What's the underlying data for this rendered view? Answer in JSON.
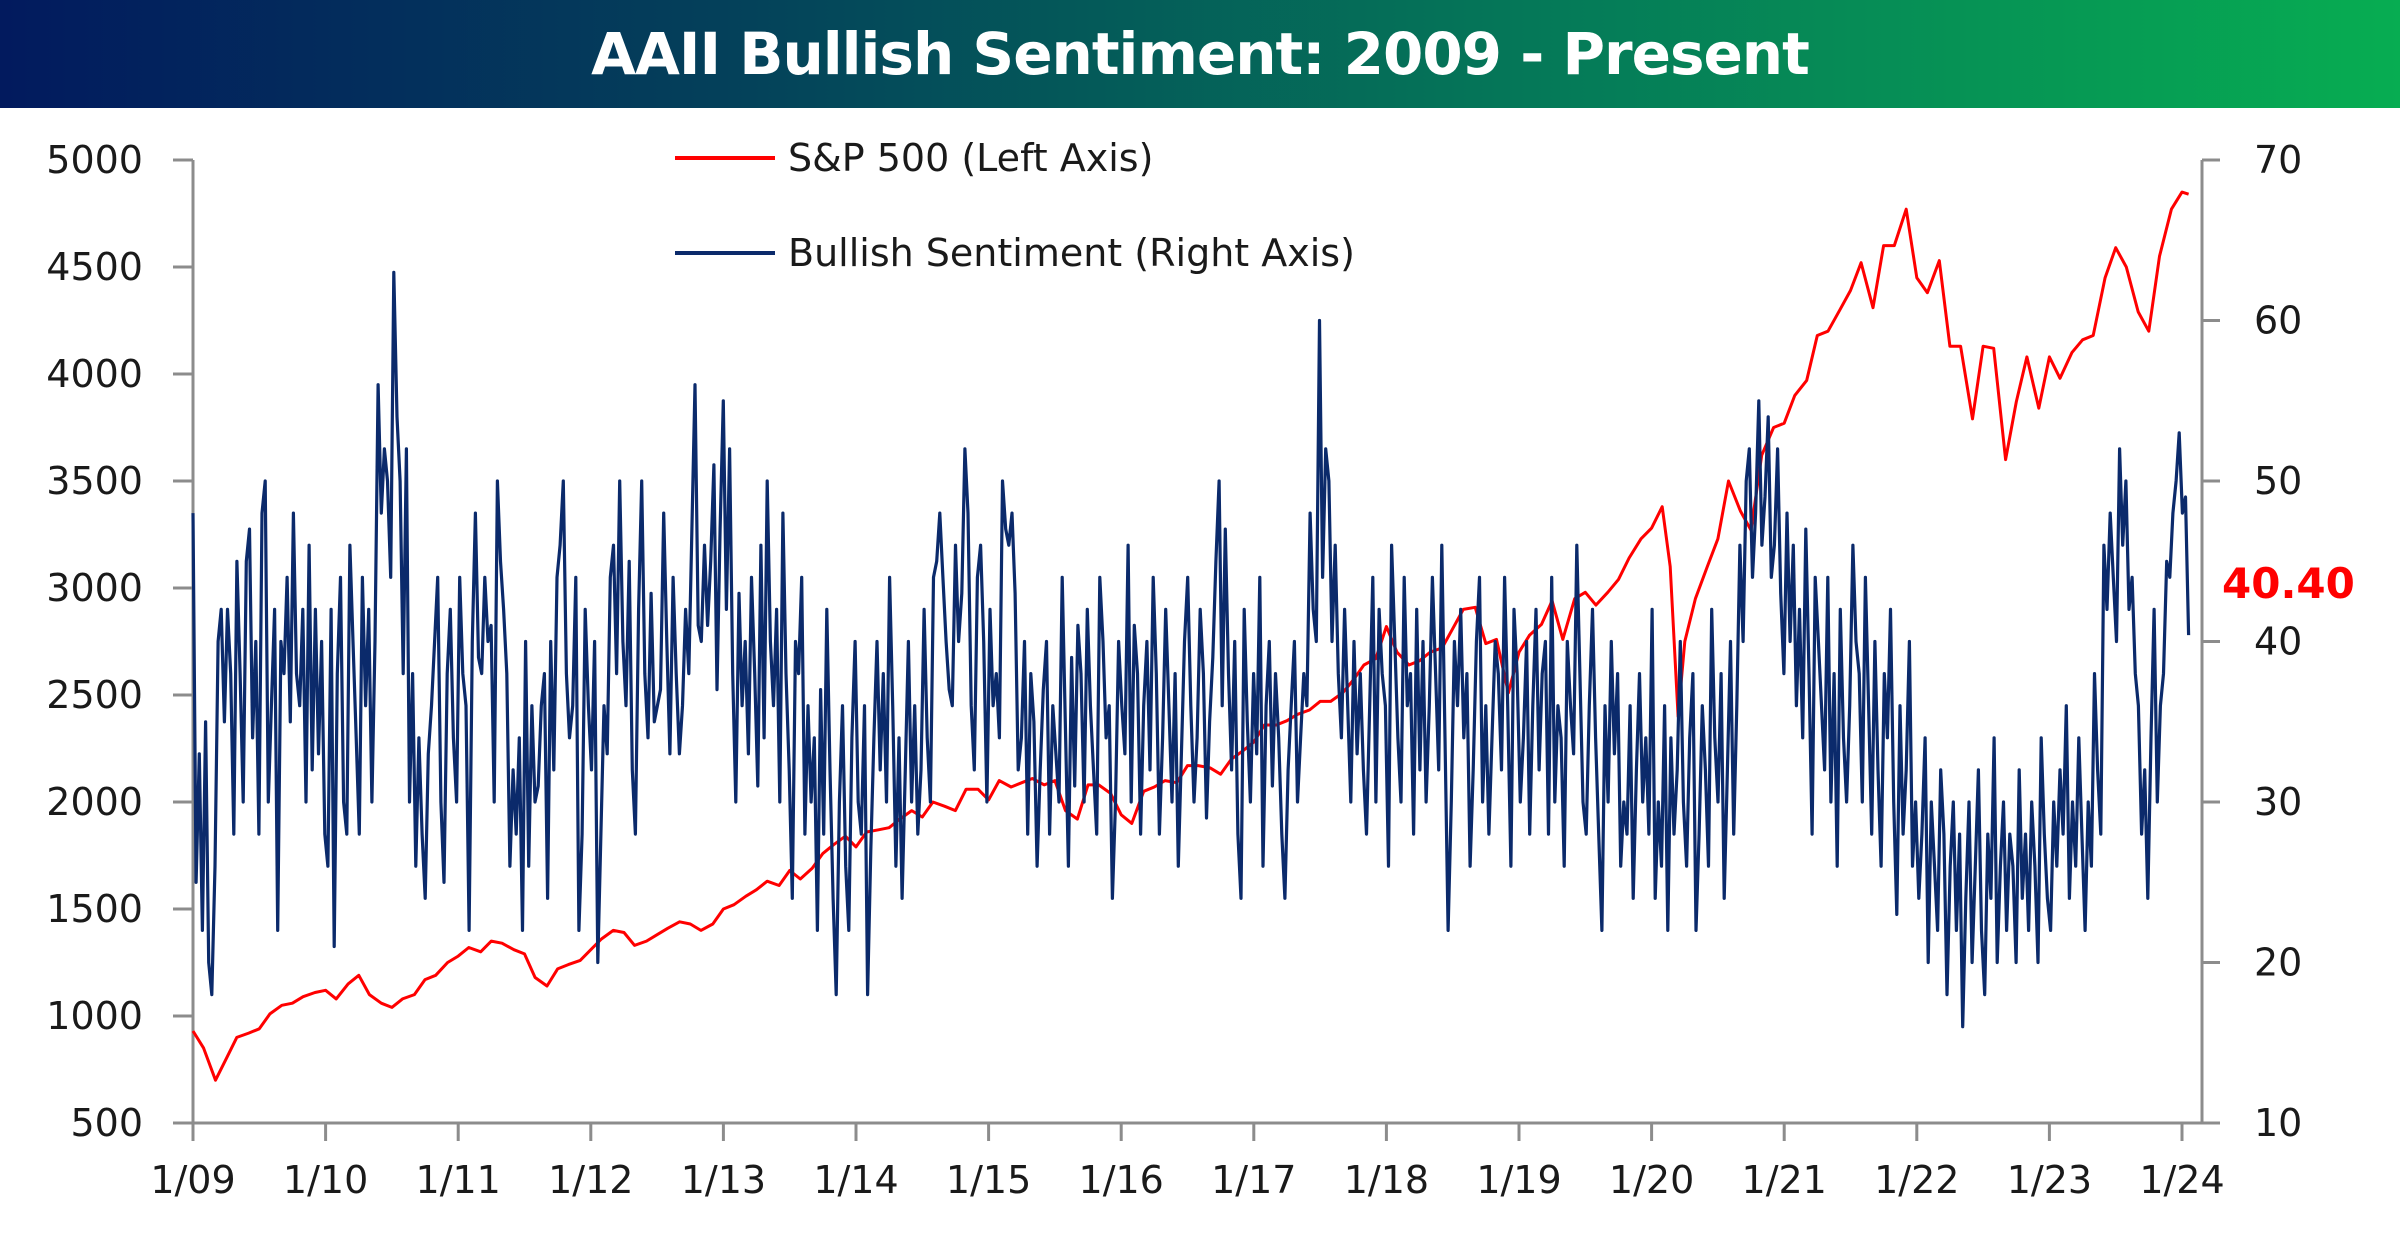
{
  "title": "AAII Bullish Sentiment: 2009 - Present",
  "colors": {
    "sp500": "#ff0000",
    "sentiment": "#0b2a6b",
    "axis": "#8c8c8c",
    "last_value": "#ff0000",
    "title_gradient_start": "#021a5e",
    "title_gradient_end": "#07ad52"
  },
  "chart_data": {
    "type": "line",
    "title": "AAII Bullish Sentiment: 2009 - Present",
    "xlabel": "",
    "ylabel_left": "",
    "ylabel_right": "",
    "x_range": [
      "2009-01",
      "2024-01"
    ],
    "x_ticks": [
      "1/09",
      "1/10",
      "1/11",
      "1/12",
      "1/13",
      "1/14",
      "1/15",
      "1/16",
      "1/17",
      "1/18",
      "1/19",
      "1/20",
      "1/21",
      "1/22",
      "1/23",
      "1/24"
    ],
    "ylim_left": [
      500,
      5000
    ],
    "y_ticks_left": [
      500,
      1000,
      1500,
      2000,
      2500,
      3000,
      3500,
      4000,
      4500,
      5000
    ],
    "ylim_right": [
      10,
      70
    ],
    "y_ticks_right": [
      10,
      20,
      30,
      40,
      50,
      60,
      70
    ],
    "grid": false,
    "legend": {
      "position": "top-center",
      "entries": [
        {
          "label": "S&P 500 (Left Axis)",
          "series": "sp500"
        },
        {
          "label": "Bullish Sentiment (Right Axis)",
          "series": "sentiment"
        }
      ]
    },
    "last_value_label": "40.40",
    "series": [
      {
        "name": "S&P 500 (Left Axis)",
        "axis": "left",
        "x_years": [
          2009.0,
          2009.08,
          2009.17,
          2009.25,
          2009.33,
          2009.42,
          2009.5,
          2009.58,
          2009.67,
          2009.75,
          2009.83,
          2009.92,
          2010.0,
          2010.08,
          2010.17,
          2010.25,
          2010.33,
          2010.42,
          2010.5,
          2010.58,
          2010.67,
          2010.75,
          2010.83,
          2010.92,
          2011.0,
          2011.08,
          2011.17,
          2011.25,
          2011.33,
          2011.42,
          2011.5,
          2011.58,
          2011.67,
          2011.75,
          2011.83,
          2011.92,
          2012.0,
          2012.08,
          2012.17,
          2012.25,
          2012.33,
          2012.42,
          2012.5,
          2012.58,
          2012.67,
          2012.75,
          2012.83,
          2012.92,
          2013.0,
          2013.08,
          2013.17,
          2013.25,
          2013.33,
          2013.42,
          2013.5,
          2013.58,
          2013.67,
          2013.75,
          2013.83,
          2013.92,
          2014.0,
          2014.08,
          2014.17,
          2014.25,
          2014.33,
          2014.42,
          2014.5,
          2014.58,
          2014.67,
          2014.75,
          2014.83,
          2014.92,
          2015.0,
          2015.08,
          2015.17,
          2015.25,
          2015.33,
          2015.42,
          2015.5,
          2015.58,
          2015.67,
          2015.75,
          2015.83,
          2015.92,
          2016.0,
          2016.08,
          2016.17,
          2016.25,
          2016.33,
          2016.42,
          2016.5,
          2016.58,
          2016.67,
          2016.75,
          2016.83,
          2016.92,
          2017.0,
          2017.08,
          2017.17,
          2017.25,
          2017.33,
          2017.42,
          2017.5,
          2017.58,
          2017.67,
          2017.75,
          2017.83,
          2017.92,
          2018.0,
          2018.08,
          2018.17,
          2018.25,
          2018.33,
          2018.42,
          2018.5,
          2018.58,
          2018.67,
          2018.75,
          2018.83,
          2018.92,
          2019.0,
          2019.08,
          2019.17,
          2019.25,
          2019.33,
          2019.42,
          2019.5,
          2019.58,
          2019.67,
          2019.75,
          2019.83,
          2019.92,
          2020.0,
          2020.08,
          2020.14,
          2020.2,
          2020.25,
          2020.33,
          2020.42,
          2020.5,
          2020.58,
          2020.67,
          2020.75,
          2020.83,
          2020.92,
          2021.0,
          2021.08,
          2021.17,
          2021.25,
          2021.33,
          2021.42,
          2021.5,
          2021.58,
          2021.67,
          2021.75,
          2021.83,
          2021.92,
          2022.0,
          2022.08,
          2022.17,
          2022.25,
          2022.33,
          2022.42,
          2022.5,
          2022.58,
          2022.67,
          2022.75,
          2022.83,
          2022.92,
          2023.0,
          2023.08,
          2023.17,
          2023.25,
          2023.33,
          2023.42,
          2023.5,
          2023.58,
          2023.67,
          2023.75,
          2023.83,
          2023.92,
          2024.0,
          2024.05
        ],
        "values": [
          930,
          850,
          700,
          800,
          900,
          920,
          940,
          1010,
          1050,
          1060,
          1090,
          1110,
          1120,
          1080,
          1150,
          1190,
          1100,
          1060,
          1040,
          1080,
          1100,
          1170,
          1190,
          1250,
          1280,
          1320,
          1300,
          1350,
          1340,
          1310,
          1290,
          1180,
          1140,
          1220,
          1240,
          1260,
          1310,
          1360,
          1400,
          1390,
          1330,
          1350,
          1380,
          1410,
          1440,
          1430,
          1400,
          1430,
          1500,
          1520,
          1560,
          1590,
          1630,
          1610,
          1680,
          1640,
          1690,
          1760,
          1800,
          1840,
          1790,
          1860,
          1870,
          1880,
          1920,
          1960,
          1930,
          2000,
          1980,
          1960,
          2060,
          2060,
          2010,
          2100,
          2070,
          2090,
          2110,
          2080,
          2100,
          1960,
          1920,
          2080,
          2080,
          2040,
          1940,
          1900,
          2050,
          2070,
          2100,
          2090,
          2170,
          2170,
          2160,
          2130,
          2200,
          2240,
          2280,
          2360,
          2360,
          2380,
          2410,
          2430,
          2470,
          2470,
          2510,
          2570,
          2640,
          2670,
          2820,
          2700,
          2640,
          2660,
          2700,
          2720,
          2810,
          2900,
          2910,
          2740,
          2760,
          2510,
          2700,
          2780,
          2830,
          2940,
          2760,
          2950,
          2980,
          2920,
          2980,
          3040,
          3140,
          3230,
          3280,
          3380,
          3100,
          2400,
          2750,
          2950,
          3100,
          3230,
          3500,
          3360,
          3270,
          3620,
          3750,
          3770,
          3900,
          3970,
          4180,
          4200,
          4300,
          4390,
          4520,
          4310,
          4600,
          4600,
          4770,
          4450,
          4380,
          4530,
          4130,
          4130,
          3790,
          4130,
          4120,
          3600,
          3870,
          4080,
          3840,
          4080,
          3980,
          4100,
          4160,
          4180,
          4450,
          4590,
          4500,
          4290,
          4200,
          4550,
          4770,
          4850,
          4840
        ]
      },
      {
        "name": "Bullish Sentiment (Right Axis)",
        "axis": "right",
        "note": "weekly survey; values approximated from the plot",
        "x_start_year": 2009.0,
        "x_step_years": 0.01923,
        "values": [
          48,
          25,
          33,
          22,
          35,
          20,
          18,
          26,
          40,
          42,
          35,
          42,
          38,
          28,
          45,
          38,
          30,
          45,
          47,
          34,
          40,
          28,
          48,
          50,
          30,
          36,
          42,
          22,
          40,
          38,
          44,
          35,
          48,
          38,
          36,
          42,
          30,
          46,
          32,
          42,
          33,
          40,
          28,
          26,
          42,
          21,
          38,
          44,
          30,
          28,
          46,
          40,
          34,
          28,
          44,
          36,
          42,
          30,
          40,
          56,
          48,
          52,
          50,
          44,
          63,
          54,
          50,
          38,
          52,
          30,
          38,
          26,
          34,
          28,
          24,
          33,
          36,
          40,
          44,
          30,
          25,
          38,
          42,
          34,
          30,
          44,
          38,
          36,
          22,
          40,
          48,
          39,
          38,
          44,
          40,
          41,
          30,
          50,
          45,
          42,
          38,
          26,
          32,
          28,
          34,
          22,
          40,
          26,
          36,
          30,
          31,
          36,
          38,
          24,
          40,
          32,
          44,
          46,
          50,
          38,
          34,
          36,
          44,
          22,
          28,
          42,
          36,
          32,
          40,
          20,
          28,
          36,
          33,
          44,
          46,
          38,
          50,
          40,
          36,
          45,
          32,
          28,
          42,
          50,
          38,
          34,
          43,
          35,
          36,
          37,
          48,
          40,
          33,
          44,
          38,
          33,
          36,
          42,
          38,
          47,
          56,
          41,
          40,
          46,
          41,
          45,
          51,
          37,
          47,
          55,
          42,
          52,
          38,
          30,
          43,
          36,
          40,
          33,
          44,
          38,
          31,
          46,
          34,
          50,
          40,
          36,
          42,
          30,
          48,
          38,
          32,
          24,
          40,
          38,
          44,
          28,
          36,
          30,
          34,
          22,
          37,
          28,
          42,
          32,
          24,
          18,
          30,
          36,
          26,
          22,
          34,
          40,
          30,
          28,
          36,
          18,
          27,
          34,
          40,
          32,
          38,
          30,
          44,
          36,
          26,
          34,
          24,
          32,
          40,
          30,
          36,
          28,
          32,
          42,
          34,
          30,
          44,
          45,
          48,
          44,
          40,
          37,
          36,
          46,
          40,
          43,
          52,
          48,
          36,
          32,
          44,
          46,
          40,
          30,
          42,
          36,
          38,
          34,
          50,
          47,
          46,
          48,
          43,
          32,
          34,
          40,
          28,
          38,
          35,
          26,
          32,
          37,
          40,
          28,
          36,
          33,
          30,
          44,
          35,
          26,
          39,
          31,
          41,
          38,
          30,
          42,
          36,
          32,
          28,
          44,
          40,
          34,
          36,
          24,
          30,
          40,
          36,
          33,
          46,
          30,
          41,
          38,
          28,
          36,
          40,
          32,
          44,
          38,
          28,
          34,
          42,
          36,
          30,
          38,
          26,
          33,
          40,
          44,
          36,
          30,
          34,
          42,
          38,
          29,
          35,
          39,
          45,
          50,
          36,
          47,
          38,
          32,
          40,
          28,
          24,
          42,
          35,
          30,
          38,
          33,
          44,
          26,
          36,
          40,
          31,
          38,
          34,
          28,
          24,
          32,
          36,
          40,
          30,
          34,
          38,
          36,
          48,
          42,
          40,
          60,
          44,
          52,
          50,
          40,
          46,
          38,
          34,
          42,
          36,
          30,
          40,
          33,
          38,
          32,
          28,
          36,
          44,
          30,
          42,
          38,
          36,
          26,
          46,
          40,
          34,
          30,
          44,
          36,
          38,
          28,
          42,
          32,
          40,
          30,
          36,
          44,
          38,
          32,
          46,
          34,
          22,
          30,
          40,
          36,
          42,
          34,
          38,
          26,
          32,
          40,
          44,
          30,
          36,
          28,
          34,
          40,
          38,
          32,
          44,
          36,
          26,
          42,
          38,
          30,
          34,
          40,
          28,
          36,
          42,
          32,
          38,
          40,
          28,
          44,
          30,
          36,
          34,
          26,
          40,
          36,
          33,
          46,
          38,
          30,
          28,
          36,
          42,
          34,
          28,
          22,
          36,
          30,
          40,
          33,
          38,
          26,
          30,
          28,
          36,
          24,
          32,
          38,
          30,
          34,
          28,
          42,
          24,
          30,
          26,
          36,
          22,
          34,
          28,
          32,
          40,
          30,
          26,
          34,
          38,
          22,
          28,
          36,
          32,
          26,
          42,
          34,
          30,
          38,
          24,
          32,
          40,
          28,
          36,
          46,
          40,
          50,
          52,
          44,
          48,
          55,
          46,
          49,
          54,
          44,
          46,
          52,
          43,
          38,
          48,
          40,
          46,
          36,
          42,
          34,
          47,
          38,
          28,
          44,
          40,
          36,
          32,
          44,
          30,
          38,
          26,
          42,
          34,
          30,
          36,
          46,
          40,
          38,
          30,
          44,
          36,
          28,
          40,
          32,
          26,
          38,
          34,
          42,
          30,
          23,
          36,
          28,
          32,
          40,
          26,
          30,
          24,
          28,
          34,
          20,
          30,
          26,
          22,
          32,
          28,
          18,
          26,
          30,
          22,
          28,
          16,
          24,
          30,
          20,
          26,
          32,
          22,
          18,
          28,
          24,
          34,
          20,
          26,
          30,
          22,
          28,
          26,
          20,
          32,
          24,
          28,
          22,
          30,
          26,
          20,
          34,
          28,
          24,
          22,
          30,
          26,
          32,
          28,
          36,
          24,
          30,
          26,
          34,
          28,
          22,
          30,
          26,
          38,
          32,
          28,
          46,
          42,
          48,
          44,
          40,
          52,
          46,
          50,
          42,
          44,
          38,
          36,
          28,
          32,
          24,
          34,
          42,
          30,
          36,
          38,
          45,
          44,
          48,
          50,
          53,
          48,
          49,
          40.4
        ]
      }
    ]
  }
}
